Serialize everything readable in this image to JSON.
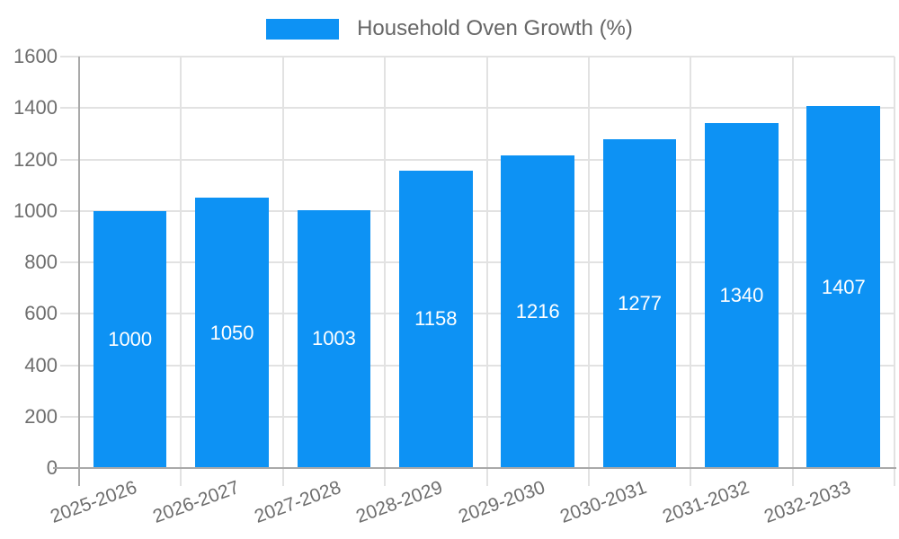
{
  "chart_data": {
    "type": "bar",
    "title": "Household Oven Growth (%)",
    "legend": {
      "position": "top",
      "entries": [
        "Household Oven Growth (%)"
      ]
    },
    "categories": [
      "2025-2026",
      "2026-2027",
      "2027-2028",
      "2028-2029",
      "2029-2030",
      "2030-2031",
      "2031-2032",
      "2032-2033"
    ],
    "values": [
      1000,
      1050,
      1003,
      1158,
      1216,
      1277,
      1340,
      1407
    ],
    "bar_value_labels": [
      "1000",
      "1050",
      "1003",
      "1158",
      "1216",
      "1277",
      "1340",
      "1407"
    ],
    "xlabel": "",
    "ylabel": "",
    "ylim": [
      0,
      1600
    ],
    "ytick_step": 200,
    "yticks": [
      0,
      200,
      400,
      600,
      800,
      1000,
      1200,
      1400,
      1600
    ],
    "grid": true,
    "colors": {
      "bar": "#0D92F4",
      "bar_label": "#FFFFFF",
      "tick_label": "#6E6E6E",
      "title_text": "#666666",
      "gridline": "#E2E2E2",
      "axis_line": "#A9A9A9"
    }
  }
}
